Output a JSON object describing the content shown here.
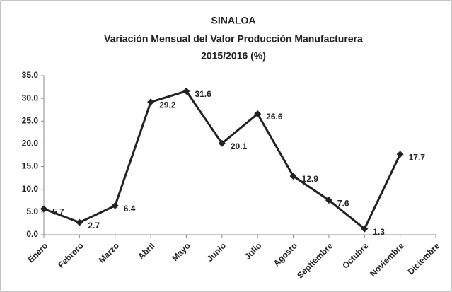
{
  "chart_data": {
    "type": "line",
    "title": "SINALOA",
    "subtitle": [
      "Variación Mensual del Valor Producción Manufacturera",
      "2015/2016 (%)"
    ],
    "categories": [
      "Enero",
      "Febrero",
      "Marzo",
      "Abril",
      "Mayo",
      "Junio",
      "Julio",
      "Agosto",
      "Septiembre",
      "Octubre",
      "Noviembre",
      "Diciembre"
    ],
    "values": [
      5.7,
      2.7,
      6.4,
      29.2,
      31.6,
      20.1,
      26.6,
      12.9,
      7.6,
      1.3,
      17.7,
      null
    ],
    "color": "#222222",
    "ylim": [
      0,
      35
    ],
    "yticks": [
      {
        "value": 0,
        "label": "0.0"
      },
      {
        "value": 5,
        "label": "5.0"
      },
      {
        "value": 10,
        "label": "10.0"
      },
      {
        "value": 15,
        "label": "15.0"
      },
      {
        "value": 20,
        "label": "20.0"
      },
      {
        "value": 25,
        "label": "25.0"
      },
      {
        "value": 30,
        "label": "30.0"
      },
      {
        "value": 35,
        "label": "35.0"
      }
    ],
    "grid": false
  }
}
